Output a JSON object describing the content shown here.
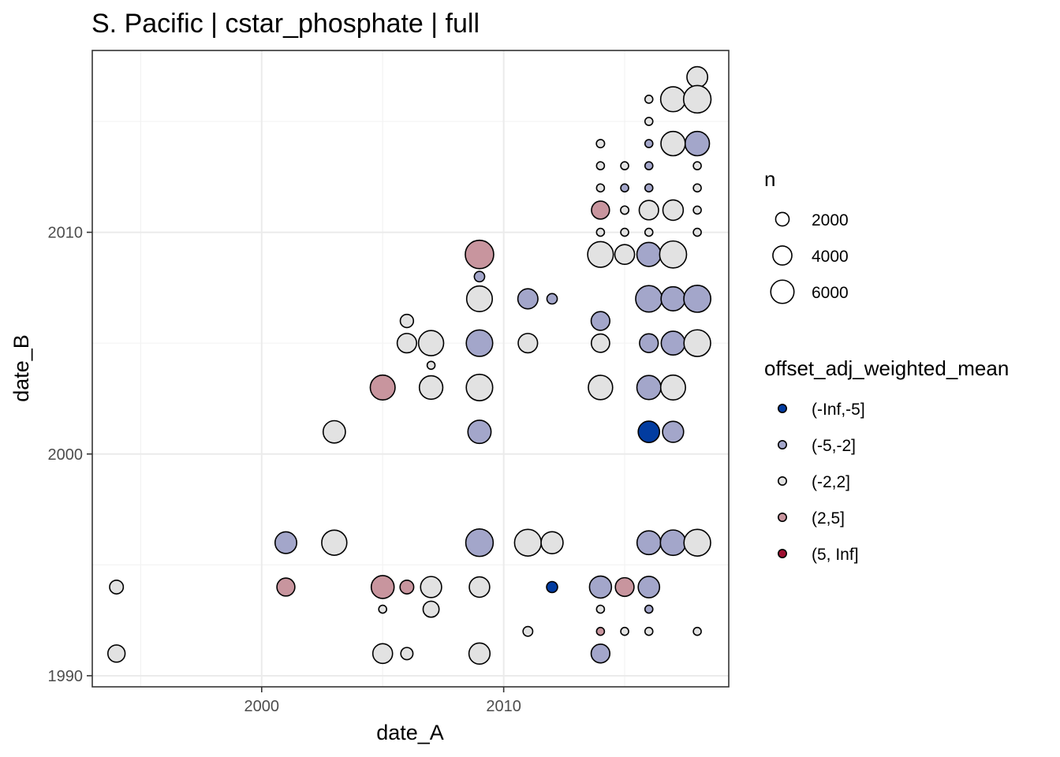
{
  "chart_data": {
    "type": "scatter",
    "title": "S. Pacific | cstar_phosphate | full",
    "xlabel": "date_A",
    "ylabel": "date_B",
    "xlim": [
      1993.0,
      2019.3
    ],
    "ylim": [
      1989.5,
      2018.2
    ],
    "x_ticks": [
      2000,
      2010
    ],
    "y_ticks": [
      1990,
      2000,
      2010
    ],
    "size_legend": {
      "title": "n",
      "entries": [
        {
          "label": "2000",
          "value": 2000
        },
        {
          "label": "4000",
          "value": 4000
        },
        {
          "label": "6000",
          "value": 6000
        }
      ]
    },
    "color_legend": {
      "title": "offset_adj_weighted_mean",
      "entries": [
        {
          "label": "(-Inf,-5]",
          "color": "#023ca0"
        },
        {
          "label": "(-5,-2]",
          "color": "#a3a6ca"
        },
        {
          "label": "(-2,2]",
          "color": "#e2e2e2"
        },
        {
          "label": "(2,5]",
          "color": "#c8959e"
        },
        {
          "label": "(5, Inf]",
          "color": "#9e0f30"
        }
      ]
    },
    "points": [
      {
        "x": 1994,
        "y": 1994,
        "n": 1400,
        "bin": "(-2,2]"
      },
      {
        "x": 1994,
        "y": 1991,
        "n": 2200,
        "bin": "(-2,2]"
      },
      {
        "x": 2001,
        "y": 1996,
        "n": 3500,
        "bin": "(-5,-2]"
      },
      {
        "x": 2001,
        "y": 1994,
        "n": 2400,
        "bin": "(2,5]"
      },
      {
        "x": 2003,
        "y": 1996,
        "n": 4700,
        "bin": "(-2,2]"
      },
      {
        "x": 2003,
        "y": 2001,
        "n": 3700,
        "bin": "(-2,2]"
      },
      {
        "x": 2005,
        "y": 2003,
        "n": 4600,
        "bin": "(2,5]"
      },
      {
        "x": 2005,
        "y": 1994,
        "n": 3900,
        "bin": "(2,5]"
      },
      {
        "x": 2005,
        "y": 1993,
        "n": 400,
        "bin": "(-2,2]"
      },
      {
        "x": 2005,
        "y": 1991,
        "n": 2900,
        "bin": "(-2,2]"
      },
      {
        "x": 2006,
        "y": 2006,
        "n": 1300,
        "bin": "(-2,2]"
      },
      {
        "x": 2006,
        "y": 2005,
        "n": 2800,
        "bin": "(-2,2]"
      },
      {
        "x": 2006,
        "y": 1994,
        "n": 1400,
        "bin": "(2,5]"
      },
      {
        "x": 2006,
        "y": 1991,
        "n": 1100,
        "bin": "(-2,2]"
      },
      {
        "x": 2007,
        "y": 2005,
        "n": 4700,
        "bin": "(-2,2]"
      },
      {
        "x": 2007,
        "y": 2004,
        "n": 150,
        "bin": "(-2,2]"
      },
      {
        "x": 2007,
        "y": 2003,
        "n": 4100,
        "bin": "(-2,2]"
      },
      {
        "x": 2007,
        "y": 1994,
        "n": 3300,
        "bin": "(-2,2]"
      },
      {
        "x": 2007,
        "y": 1993,
        "n": 1900,
        "bin": "(-2,2]"
      },
      {
        "x": 2009,
        "y": 2009,
        "n": 6000,
        "bin": "(2,5]"
      },
      {
        "x": 2009,
        "y": 2008,
        "n": 800,
        "bin": "(-5,-2]"
      },
      {
        "x": 2009,
        "y": 2007,
        "n": 4900,
        "bin": "(-2,2]"
      },
      {
        "x": 2009,
        "y": 2005,
        "n": 5200,
        "bin": "(-5,-2]"
      },
      {
        "x": 2009,
        "y": 2003,
        "n": 5200,
        "bin": "(-2,2]"
      },
      {
        "x": 2009,
        "y": 2001,
        "n": 4000,
        "bin": "(-5,-2]"
      },
      {
        "x": 2009,
        "y": 1996,
        "n": 5600,
        "bin": "(-5,-2]"
      },
      {
        "x": 2009,
        "y": 1994,
        "n": 3100,
        "bin": "(-2,2]"
      },
      {
        "x": 2009,
        "y": 1991,
        "n": 3300,
        "bin": "(-2,2]"
      },
      {
        "x": 2011,
        "y": 2007,
        "n": 3000,
        "bin": "(-5,-2]"
      },
      {
        "x": 2011,
        "y": 2005,
        "n": 2800,
        "bin": "(-2,2]"
      },
      {
        "x": 2011,
        "y": 1996,
        "n": 5300,
        "bin": "(-2,2]"
      },
      {
        "x": 2011,
        "y": 1992,
        "n": 700,
        "bin": "(-2,2]"
      },
      {
        "x": 2012,
        "y": 2007,
        "n": 800,
        "bin": "(-5,-2]"
      },
      {
        "x": 2012,
        "y": 1996,
        "n": 3600,
        "bin": "(-2,2]"
      },
      {
        "x": 2012,
        "y": 1994,
        "n": 900,
        "bin": "(-Inf,-5]"
      },
      {
        "x": 2014,
        "y": 2014,
        "n": 500,
        "bin": "(-2,2]"
      },
      {
        "x": 2014,
        "y": 2013,
        "n": 300,
        "bin": "(-2,2]"
      },
      {
        "x": 2014,
        "y": 2012,
        "n": 300,
        "bin": "(-2,2]"
      },
      {
        "x": 2014,
        "y": 2011,
        "n": 2400,
        "bin": "(2,5]"
      },
      {
        "x": 2014,
        "y": 2010,
        "n": 300,
        "bin": "(-2,2]"
      },
      {
        "x": 2014,
        "y": 2009,
        "n": 4900,
        "bin": "(-2,2]"
      },
      {
        "x": 2014,
        "y": 2006,
        "n": 2600,
        "bin": "(-5,-2]"
      },
      {
        "x": 2014,
        "y": 2005,
        "n": 2500,
        "bin": "(-2,2]"
      },
      {
        "x": 2014,
        "y": 2003,
        "n": 4400,
        "bin": "(-2,2]"
      },
      {
        "x": 2014,
        "y": 1994,
        "n": 3600,
        "bin": "(-5,-2]"
      },
      {
        "x": 2014,
        "y": 1993,
        "n": 300,
        "bin": "(-2,2]"
      },
      {
        "x": 2014,
        "y": 1992,
        "n": 300,
        "bin": "(2,5]"
      },
      {
        "x": 2014,
        "y": 1991,
        "n": 2600,
        "bin": "(-5,-2]"
      },
      {
        "x": 2015,
        "y": 2013,
        "n": 300,
        "bin": "(-2,2]"
      },
      {
        "x": 2015,
        "y": 2012,
        "n": 300,
        "bin": "(-5,-2]"
      },
      {
        "x": 2015,
        "y": 2011,
        "n": 500,
        "bin": "(-2,2]"
      },
      {
        "x": 2015,
        "y": 2010,
        "n": 300,
        "bin": "(-2,2]"
      },
      {
        "x": 2015,
        "y": 2009,
        "n": 2900,
        "bin": "(-2,2]"
      },
      {
        "x": 2015,
        "y": 1994,
        "n": 2600,
        "bin": "(2,5]"
      },
      {
        "x": 2015,
        "y": 1992,
        "n": 300,
        "bin": "(-2,2]"
      },
      {
        "x": 2016,
        "y": 2016,
        "n": 300,
        "bin": "(-2,2]"
      },
      {
        "x": 2016,
        "y": 2015,
        "n": 300,
        "bin": "(-2,2]"
      },
      {
        "x": 2016,
        "y": 2014,
        "n": 300,
        "bin": "(-5,-2]"
      },
      {
        "x": 2016,
        "y": 2013,
        "n": 300,
        "bin": "(-5,-2]"
      },
      {
        "x": 2016,
        "y": 2012,
        "n": 300,
        "bin": "(-5,-2]"
      },
      {
        "x": 2016,
        "y": 2011,
        "n": 2800,
        "bin": "(-2,2]"
      },
      {
        "x": 2016,
        "y": 2010,
        "n": 300,
        "bin": "(-2,2]"
      },
      {
        "x": 2016,
        "y": 2009,
        "n": 4300,
        "bin": "(-5,-2]"
      },
      {
        "x": 2016,
        "y": 2007,
        "n": 5200,
        "bin": "(-5,-2]"
      },
      {
        "x": 2016,
        "y": 2005,
        "n": 2600,
        "bin": "(-5,-2]"
      },
      {
        "x": 2016,
        "y": 2003,
        "n": 4300,
        "bin": "(-5,-2]"
      },
      {
        "x": 2016,
        "y": 2001,
        "n": 3400,
        "bin": "(-Inf,-5]"
      },
      {
        "x": 2016,
        "y": 1996,
        "n": 4200,
        "bin": "(-5,-2]"
      },
      {
        "x": 2016,
        "y": 1994,
        "n": 3400,
        "bin": "(-5,-2]"
      },
      {
        "x": 2016,
        "y": 1993,
        "n": 300,
        "bin": "(-5,-2]"
      },
      {
        "x": 2016,
        "y": 1992,
        "n": 300,
        "bin": "(-2,2]"
      },
      {
        "x": 2017,
        "y": 2016,
        "n": 4600,
        "bin": "(-2,2]"
      },
      {
        "x": 2017,
        "y": 2014,
        "n": 4400,
        "bin": "(-2,2]"
      },
      {
        "x": 2017,
        "y": 2011,
        "n": 3100,
        "bin": "(-2,2]"
      },
      {
        "x": 2017,
        "y": 2009,
        "n": 5400,
        "bin": "(-2,2]"
      },
      {
        "x": 2017,
        "y": 2007,
        "n": 4300,
        "bin": "(-5,-2]"
      },
      {
        "x": 2017,
        "y": 2005,
        "n": 4200,
        "bin": "(-5,-2]"
      },
      {
        "x": 2017,
        "y": 2003,
        "n": 4600,
        "bin": "(-2,2]"
      },
      {
        "x": 2017,
        "y": 2001,
        "n": 3300,
        "bin": "(-5,-2]"
      },
      {
        "x": 2017,
        "y": 1996,
        "n": 4800,
        "bin": "(-5,-2]"
      },
      {
        "x": 2018,
        "y": 2017,
        "n": 3200,
        "bin": "(-2,2]"
      },
      {
        "x": 2018,
        "y": 2016,
        "n": 5600,
        "bin": "(-2,2]"
      },
      {
        "x": 2018,
        "y": 2014,
        "n": 4400,
        "bin": "(-5,-2]"
      },
      {
        "x": 2018,
        "y": 2013,
        "n": 300,
        "bin": "(-2,2]"
      },
      {
        "x": 2018,
        "y": 2012,
        "n": 300,
        "bin": "(-2,2]"
      },
      {
        "x": 2018,
        "y": 2011,
        "n": 300,
        "bin": "(-2,2]"
      },
      {
        "x": 2018,
        "y": 2010,
        "n": 300,
        "bin": "(-2,2]"
      },
      {
        "x": 2018,
        "y": 2007,
        "n": 5400,
        "bin": "(-5,-2]"
      },
      {
        "x": 2018,
        "y": 2005,
        "n": 5300,
        "bin": "(-2,2]"
      },
      {
        "x": 2018,
        "y": 1996,
        "n": 5300,
        "bin": "(-2,2]"
      },
      {
        "x": 2018,
        "y": 1992,
        "n": 300,
        "bin": "(-2,2]"
      }
    ]
  }
}
